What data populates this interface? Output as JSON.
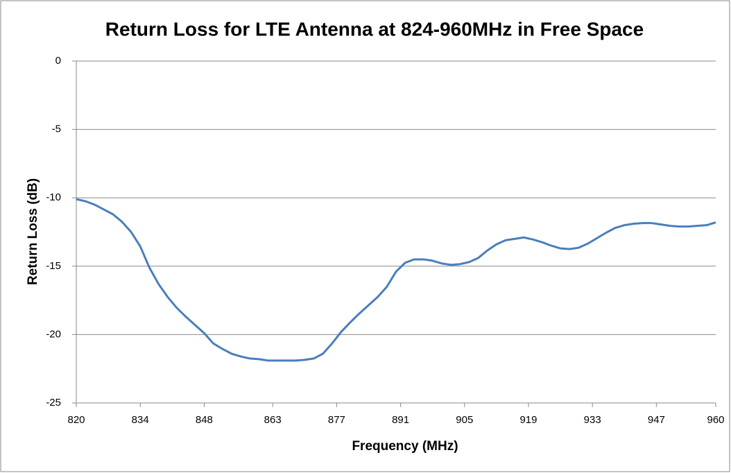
{
  "chart_data": {
    "type": "line",
    "title": "Return Loss for LTE Antenna at 824-960MHz in Free Space",
    "x_label": "Frequency  (MHz)",
    "y_label": "Return Loss (dB)",
    "x": [
      820,
      822,
      824,
      826,
      828,
      830,
      832,
      834,
      836,
      838,
      840,
      842,
      844,
      846,
      848,
      850,
      852,
      854,
      856,
      858,
      860,
      862,
      864,
      866,
      868,
      870,
      872,
      874,
      876,
      878,
      880,
      882,
      884,
      886,
      888,
      890,
      892,
      894,
      896,
      898,
      900,
      902,
      904,
      906,
      908,
      910,
      912,
      914,
      916,
      918,
      920,
      922,
      924,
      926,
      928,
      930,
      932,
      934,
      936,
      938,
      940,
      942,
      944,
      946,
      948,
      950,
      952,
      954,
      956,
      958,
      960
    ],
    "series": [
      {
        "name": "Return Loss",
        "color": "#4a7ebb",
        "values": [
          -10.1,
          -10.25,
          -10.5,
          -10.85,
          -11.2,
          -11.75,
          -12.5,
          -13.55,
          -15.1,
          -16.3,
          -17.25,
          -18.05,
          -18.7,
          -19.3,
          -19.9,
          -20.65,
          -21.05,
          -21.4,
          -21.6,
          -21.75,
          -21.8,
          -21.9,
          -21.9,
          -21.9,
          -21.9,
          -21.85,
          -21.75,
          -21.4,
          -20.65,
          -19.8,
          -19.1,
          -18.45,
          -17.85,
          -17.25,
          -16.5,
          -15.4,
          -14.75,
          -14.5,
          -14.5,
          -14.6,
          -14.8,
          -14.9,
          -14.85,
          -14.7,
          -14.4,
          -13.85,
          -13.4,
          -13.1,
          -13,
          -12.9,
          -13.05,
          -13.25,
          -13.5,
          -13.7,
          -13.75,
          -13.65,
          -13.35,
          -12.95,
          -12.55,
          -12.2,
          -12,
          -11.9,
          -11.85,
          -11.85,
          -11.95,
          -12.05,
          -12.1,
          -12.1,
          -12.05,
          -12,
          -11.8
        ]
      }
    ],
    "xlim": [
      820,
      960
    ],
    "xticks": [
      820,
      834,
      848,
      863,
      877,
      891,
      905,
      919,
      933,
      947,
      960
    ],
    "ylim": [
      -25,
      0
    ],
    "yticks": [
      -25,
      -20,
      -15,
      -10,
      -5,
      0
    ],
    "grid": true
  }
}
